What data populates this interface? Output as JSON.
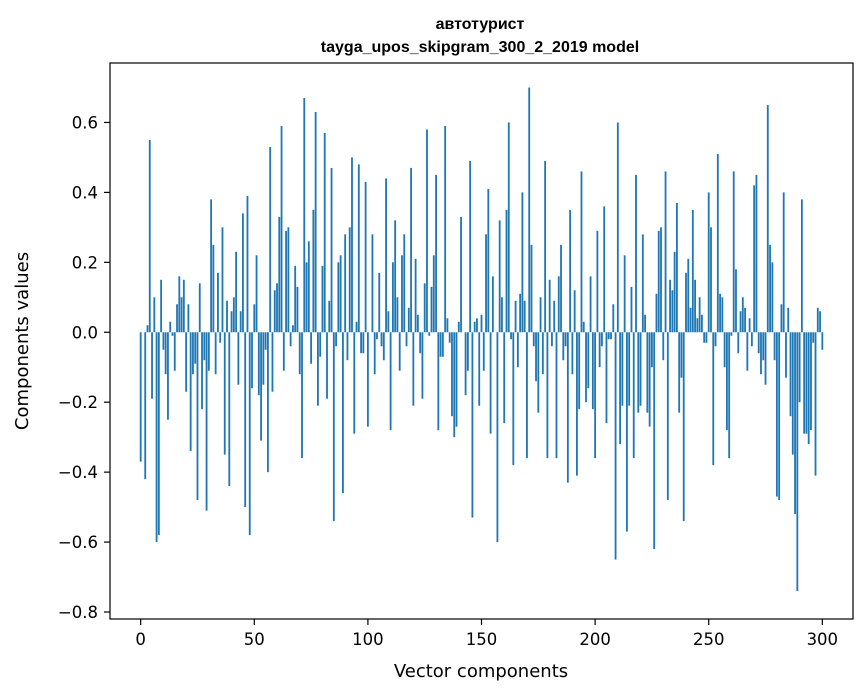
{
  "chart_data": {
    "type": "bar",
    "title": "автотурист",
    "subtitle": "tayga_upos_skipgram_300_2_2019 model",
    "xlabel": "Vector components",
    "ylabel": "Components values",
    "xlim": [
      -13.5,
      313.5
    ],
    "ylim": [
      -0.82,
      0.77
    ],
    "x_ticks": [
      0,
      50,
      100,
      150,
      200,
      250,
      300
    ],
    "x_tick_labels": [
      "0",
      "50",
      "100",
      "150",
      "200",
      "250",
      "300"
    ],
    "y_ticks": [
      -0.8,
      -0.6,
      -0.4,
      -0.2,
      0.0,
      0.2,
      0.4,
      0.6
    ],
    "y_tick_labels": [
      "−0.8",
      "−0.6",
      "−0.4",
      "−0.2",
      "0.0",
      "0.2",
      "0.4",
      "0.6"
    ],
    "bar_color": "#1f77b4",
    "values": [
      -0.37,
      0.0,
      -0.42,
      0.02,
      0.55,
      -0.19,
      0.1,
      -0.6,
      -0.58,
      0.15,
      -0.05,
      -0.12,
      -0.25,
      0.03,
      -0.01,
      -0.11,
      0.08,
      0.16,
      0.1,
      0.15,
      -0.17,
      0.08,
      -0.34,
      -0.12,
      -0.09,
      -0.48,
      0.14,
      -0.22,
      -0.08,
      -0.51,
      -0.11,
      0.38,
      0.25,
      -0.12,
      0.17,
      -0.03,
      0.3,
      -0.35,
      0.09,
      -0.44,
      0.06,
      0.1,
      0.23,
      -0.15,
      0.06,
      0.34,
      -0.5,
      0.39,
      -0.58,
      -0.16,
      0.08,
      0.22,
      -0.18,
      -0.31,
      -0.15,
      -0.05,
      -0.4,
      0.53,
      -0.17,
      0.12,
      0.14,
      0.33,
      0.59,
      -0.11,
      0.29,
      0.3,
      -0.04,
      0.02,
      0.19,
      0.13,
      -0.12,
      -0.36,
      0.67,
      0.2,
      0.26,
      -0.09,
      0.35,
      0.63,
      -0.21,
      -0.07,
      0.19,
      0.57,
      -0.19,
      0.09,
      0.47,
      -0.54,
      -0.04,
      0.2,
      0.22,
      -0.46,
      0.28,
      -0.08,
      0.3,
      0.5,
      -0.29,
      0.03,
      0.48,
      -0.06,
      -0.06,
      0.43,
      -0.27,
      0.0,
      0.28,
      -0.12,
      -0.02,
      0.17,
      -0.04,
      -0.08,
      0.44,
      0.06,
      -0.28,
      0.2,
      0.32,
      0.1,
      -0.11,
      0.22,
      0.28,
      -0.04,
      0.07,
      0.47,
      -0.21,
      0.21,
      0.05,
      -0.06,
      -0.19,
      0.14,
      0.58,
      -0.01,
      0.13,
      0.22,
      0.45,
      -0.28,
      -0.07,
      -0.07,
      0.59,
      0.04,
      -0.03,
      -0.24,
      -0.3,
      -0.27,
      0.03,
      0.33,
      0.0,
      -0.18,
      -0.11,
      0.49,
      -0.53,
      0.03,
      0.04,
      -0.21,
      0.05,
      -0.11,
      0.28,
      0.41,
      -0.29,
      0.16,
      0.0,
      -0.6,
      0.32,
      0.1,
      -0.26,
      0.35,
      0.6,
      -0.02,
      -0.38,
      0.09,
      -0.1,
      0.11,
      0.4,
      0.09,
      -0.36,
      0.7,
      0.25,
      -0.04,
      -0.14,
      -0.23,
      0.1,
      -0.12,
      0.49,
      -0.36,
      0.15,
      -0.04,
      0.09,
      -0.36,
      0.16,
      0.25,
      -0.08,
      -0.04,
      -0.43,
      0.35,
      -0.12,
      0.12,
      -0.41,
      -0.22,
      0.46,
      0.03,
      -0.2,
      -0.16,
      0.16,
      -0.22,
      -0.36,
      0.29,
      -0.1,
      -0.04,
      0.36,
      -0.26,
      -0.02,
      -0.02,
      0.08,
      -0.65,
      0.6,
      -0.32,
      -0.21,
      0.22,
      -0.57,
      -0.21,
      0.13,
      -0.36,
      0.45,
      -0.23,
      -0.21,
      0.28,
      0.05,
      -0.23,
      -0.27,
      -0.1,
      -0.62,
      0.11,
      0.29,
      0.3,
      -0.08,
      0.46,
      -0.48,
      0.15,
      0.12,
      0.23,
      0.37,
      -0.23,
      -0.13,
      -0.54,
      0.17,
      0.21,
      0.07,
      0.35,
      0.15,
      0.04,
      0.1,
      0.05,
      -0.03,
      -0.03,
      0.4,
      0.3,
      -0.38,
      -0.04,
      0.51,
      0.11,
      0.1,
      -0.1,
      -0.28,
      -0.36,
      -0.01,
      0.46,
      0.18,
      -0.06,
      0.06,
      0.1,
      0.07,
      -0.11,
      0.04,
      -0.04,
      0.42,
      0.45,
      -0.06,
      -0.12,
      -0.08,
      -0.15,
      0.65,
      0.25,
      0.2,
      -0.08,
      -0.47,
      -0.48,
      0.08,
      0.4,
      -0.13,
      0.07,
      -0.24,
      -0.35,
      -0.52,
      -0.74,
      -0.2,
      0.38,
      -0.29,
      -0.29,
      -0.32,
      -0.28,
      -0.03,
      -0.41,
      0.07,
      0.06,
      -0.05
    ]
  }
}
